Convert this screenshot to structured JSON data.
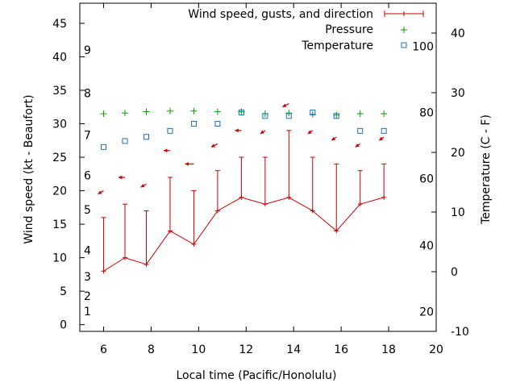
{
  "chart_data": {
    "type": "line",
    "xlabel": "Local time (Pacific/Honolulu)",
    "ylabel_left": "Wind speed (kt - Beaufort)",
    "ylabel_right": "Temperature (C - F)",
    "xlim": [
      5,
      20
    ],
    "ylim_left": [
      -1,
      48
    ],
    "ylim_right": [
      -10,
      45
    ],
    "x_ticks": [
      6,
      8,
      10,
      12,
      14,
      16,
      18,
      20
    ],
    "y_left_ticks": [
      0,
      5,
      10,
      15,
      20,
      25,
      30,
      35,
      40,
      45
    ],
    "y_right_ticks": [
      -10,
      0,
      10,
      20,
      30,
      40
    ],
    "beaufort_labels": [
      {
        "text": "1",
        "kt": 2
      },
      {
        "text": "2",
        "kt": 4.3
      },
      {
        "text": "3",
        "kt": 7.2
      },
      {
        "text": "4",
        "kt": 11.1
      },
      {
        "text": "5",
        "kt": 17.2
      },
      {
        "text": "6",
        "kt": 22.3
      },
      {
        "text": "7",
        "kt": 28.3
      },
      {
        "text": "8",
        "kt": 34.6
      },
      {
        "text": "9",
        "kt": 41
      }
    ],
    "fahrenheit_labels": [
      {
        "text": "20",
        "c": -6.7
      },
      {
        "text": "40",
        "c": 4.4
      },
      {
        "text": "60",
        "c": 15.6
      },
      {
        "text": "80",
        "c": 26.7
      },
      {
        "text": "100",
        "c": 37.8
      }
    ],
    "legend": {
      "wind": "Wind speed, gusts, and direction",
      "pressure": "Pressure",
      "temperature": "Temperature"
    },
    "series": {
      "wind": {
        "x": [
          6,
          6.9,
          7.8,
          8.8,
          9.8,
          10.8,
          11.8,
          12.8,
          13.8,
          14.8,
          15.8,
          16.8,
          17.8
        ],
        "speed": [
          8,
          10,
          9,
          14,
          12,
          17,
          19,
          18,
          19,
          17,
          14,
          18,
          19
        ],
        "gust": [
          16,
          18,
          17,
          22,
          20,
          23,
          25,
          25,
          29,
          25,
          24,
          23,
          24
        ]
      },
      "direction": {
        "x": [
          6,
          6.9,
          7.8,
          8.8,
          9.8,
          10.8,
          11.8,
          12.8,
          13.8,
          14.8,
          15.8,
          16.8,
          17.8
        ],
        "kt": [
          20,
          22,
          21,
          26,
          24,
          27,
          29,
          29,
          33,
          29,
          28,
          27,
          28
        ],
        "dx": [
          -7,
          -8,
          -7,
          -8,
          -11,
          -8,
          -8,
          -6,
          -8,
          -6,
          -6,
          -6,
          -6
        ],
        "dy": [
          4,
          0,
          4,
          0,
          0,
          4,
          0,
          4,
          4,
          4,
          4,
          4,
          4
        ]
      },
      "pressure": {
        "x": [
          6,
          6.9,
          7.8,
          8.8,
          9.8,
          10.8,
          11.8,
          12.8,
          13.8,
          14.8,
          15.8,
          16.8,
          17.8
        ],
        "kt": [
          31.5,
          31.6,
          31.8,
          31.9,
          31.9,
          31.8,
          31.8,
          31.5,
          31.6,
          31.4,
          31.3,
          31.5,
          31.5
        ]
      },
      "temperature": {
        "x": [
          6,
          6.9,
          7.8,
          8.8,
          9.8,
          10.8,
          11.8,
          12.8,
          13.8,
          14.8,
          15.8,
          16.8,
          17.8
        ],
        "c": [
          20.9,
          21.9,
          22.6,
          23.6,
          24.8,
          24.8,
          26.7,
          26.1,
          26.1,
          26.7,
          26.1,
          23.6,
          23.6
        ]
      }
    },
    "colors": {
      "wind": "#cc0000",
      "pressure": "#00a000",
      "temperature": "#1f6fbf",
      "axis": "#000000"
    }
  }
}
